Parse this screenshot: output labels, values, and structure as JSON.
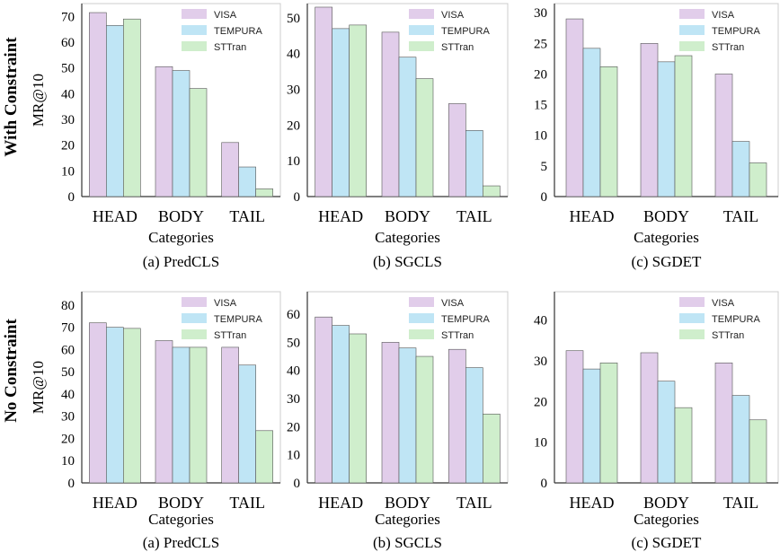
{
  "row_labels": [
    "With Constraint",
    "No Constraint"
  ],
  "legend_labels": [
    "VISA",
    "TEMPURA",
    "STTran"
  ],
  "colors": {
    "VISA": "#e1cdea",
    "TEMPURA": "#bfe5f5",
    "STTran": "#cfeecc",
    "axis": "#333333",
    "frame": "#cccccc",
    "bar_edge": "#555555"
  },
  "chart_data": [
    {
      "type": "bar",
      "title": "(a) PredCLS",
      "xlabel": "Categories",
      "ylabel": "MR@10",
      "categories": [
        "HEAD",
        "BODY",
        "TAIL"
      ],
      "ylim": [
        0,
        75
      ],
      "yticks": [
        0,
        10,
        20,
        30,
        40,
        50,
        60,
        70
      ],
      "series": [
        {
          "name": "VISA",
          "values": [
            71.5,
            50.5,
            21
          ]
        },
        {
          "name": "TEMPURA",
          "values": [
            66.5,
            49,
            11.5
          ]
        },
        {
          "name": "STTran",
          "values": [
            69,
            42,
            3
          ]
        }
      ]
    },
    {
      "type": "bar",
      "title": "(b) SGCLS",
      "xlabel": "Categories",
      "ylabel": "",
      "categories": [
        "HEAD",
        "BODY",
        "TAIL"
      ],
      "ylim": [
        0,
        54
      ],
      "yticks": [
        0,
        10,
        20,
        30,
        40,
        50
      ],
      "series": [
        {
          "name": "VISA",
          "values": [
            53,
            46,
            26
          ]
        },
        {
          "name": "TEMPURA",
          "values": [
            47,
            39,
            18.5
          ]
        },
        {
          "name": "STTran",
          "values": [
            48,
            33,
            3
          ]
        }
      ]
    },
    {
      "type": "bar",
      "title": "(c) SGDET",
      "xlabel": "Categories",
      "ylabel": "",
      "categories": [
        "HEAD",
        "BODY",
        "TAIL"
      ],
      "ylim": [
        0,
        31.5
      ],
      "yticks": [
        0,
        5,
        10,
        15,
        20,
        25,
        30
      ],
      "series": [
        {
          "name": "VISA",
          "values": [
            29,
            25,
            20
          ]
        },
        {
          "name": "TEMPURA",
          "values": [
            24.2,
            22,
            9
          ]
        },
        {
          "name": "STTran",
          "values": [
            21.2,
            23,
            5.5
          ]
        }
      ]
    },
    {
      "type": "bar",
      "title": "(a) PredCLS",
      "xlabel": "Categories",
      "ylabel": "MR@10",
      "categories": [
        "HEAD",
        "BODY",
        "TAIL"
      ],
      "ylim": [
        0,
        86
      ],
      "yticks": [
        0,
        10,
        20,
        30,
        40,
        50,
        60,
        70,
        80
      ],
      "series": [
        {
          "name": "VISA",
          "values": [
            72,
            64,
            61
          ]
        },
        {
          "name": "TEMPURA",
          "values": [
            70,
            61,
            53
          ]
        },
        {
          "name": "STTran",
          "values": [
            69.5,
            61,
            23.5
          ]
        }
      ]
    },
    {
      "type": "bar",
      "title": "(b) SGCLS",
      "xlabel": "Categories",
      "ylabel": "",
      "categories": [
        "HEAD",
        "BODY",
        "TAIL"
      ],
      "ylim": [
        0,
        68
      ],
      "yticks": [
        0,
        10,
        20,
        30,
        40,
        50,
        60
      ],
      "series": [
        {
          "name": "VISA",
          "values": [
            59,
            50,
            47.5
          ]
        },
        {
          "name": "TEMPURA",
          "values": [
            56,
            48,
            41
          ]
        },
        {
          "name": "STTran",
          "values": [
            53,
            45,
            24.5
          ]
        }
      ]
    },
    {
      "type": "bar",
      "title": "(c) SGDET",
      "xlabel": "Categories",
      "ylabel": "",
      "categories": [
        "HEAD",
        "BODY",
        "TAIL"
      ],
      "ylim": [
        0,
        47
      ],
      "yticks": [
        0,
        10,
        20,
        30,
        40
      ],
      "series": [
        {
          "name": "VISA",
          "values": [
            32.5,
            32,
            29.5
          ]
        },
        {
          "name": "TEMPURA",
          "values": [
            28,
            25,
            21.5
          ]
        },
        {
          "name": "STTran",
          "values": [
            29.5,
            18.5,
            15.5
          ]
        }
      ]
    }
  ]
}
